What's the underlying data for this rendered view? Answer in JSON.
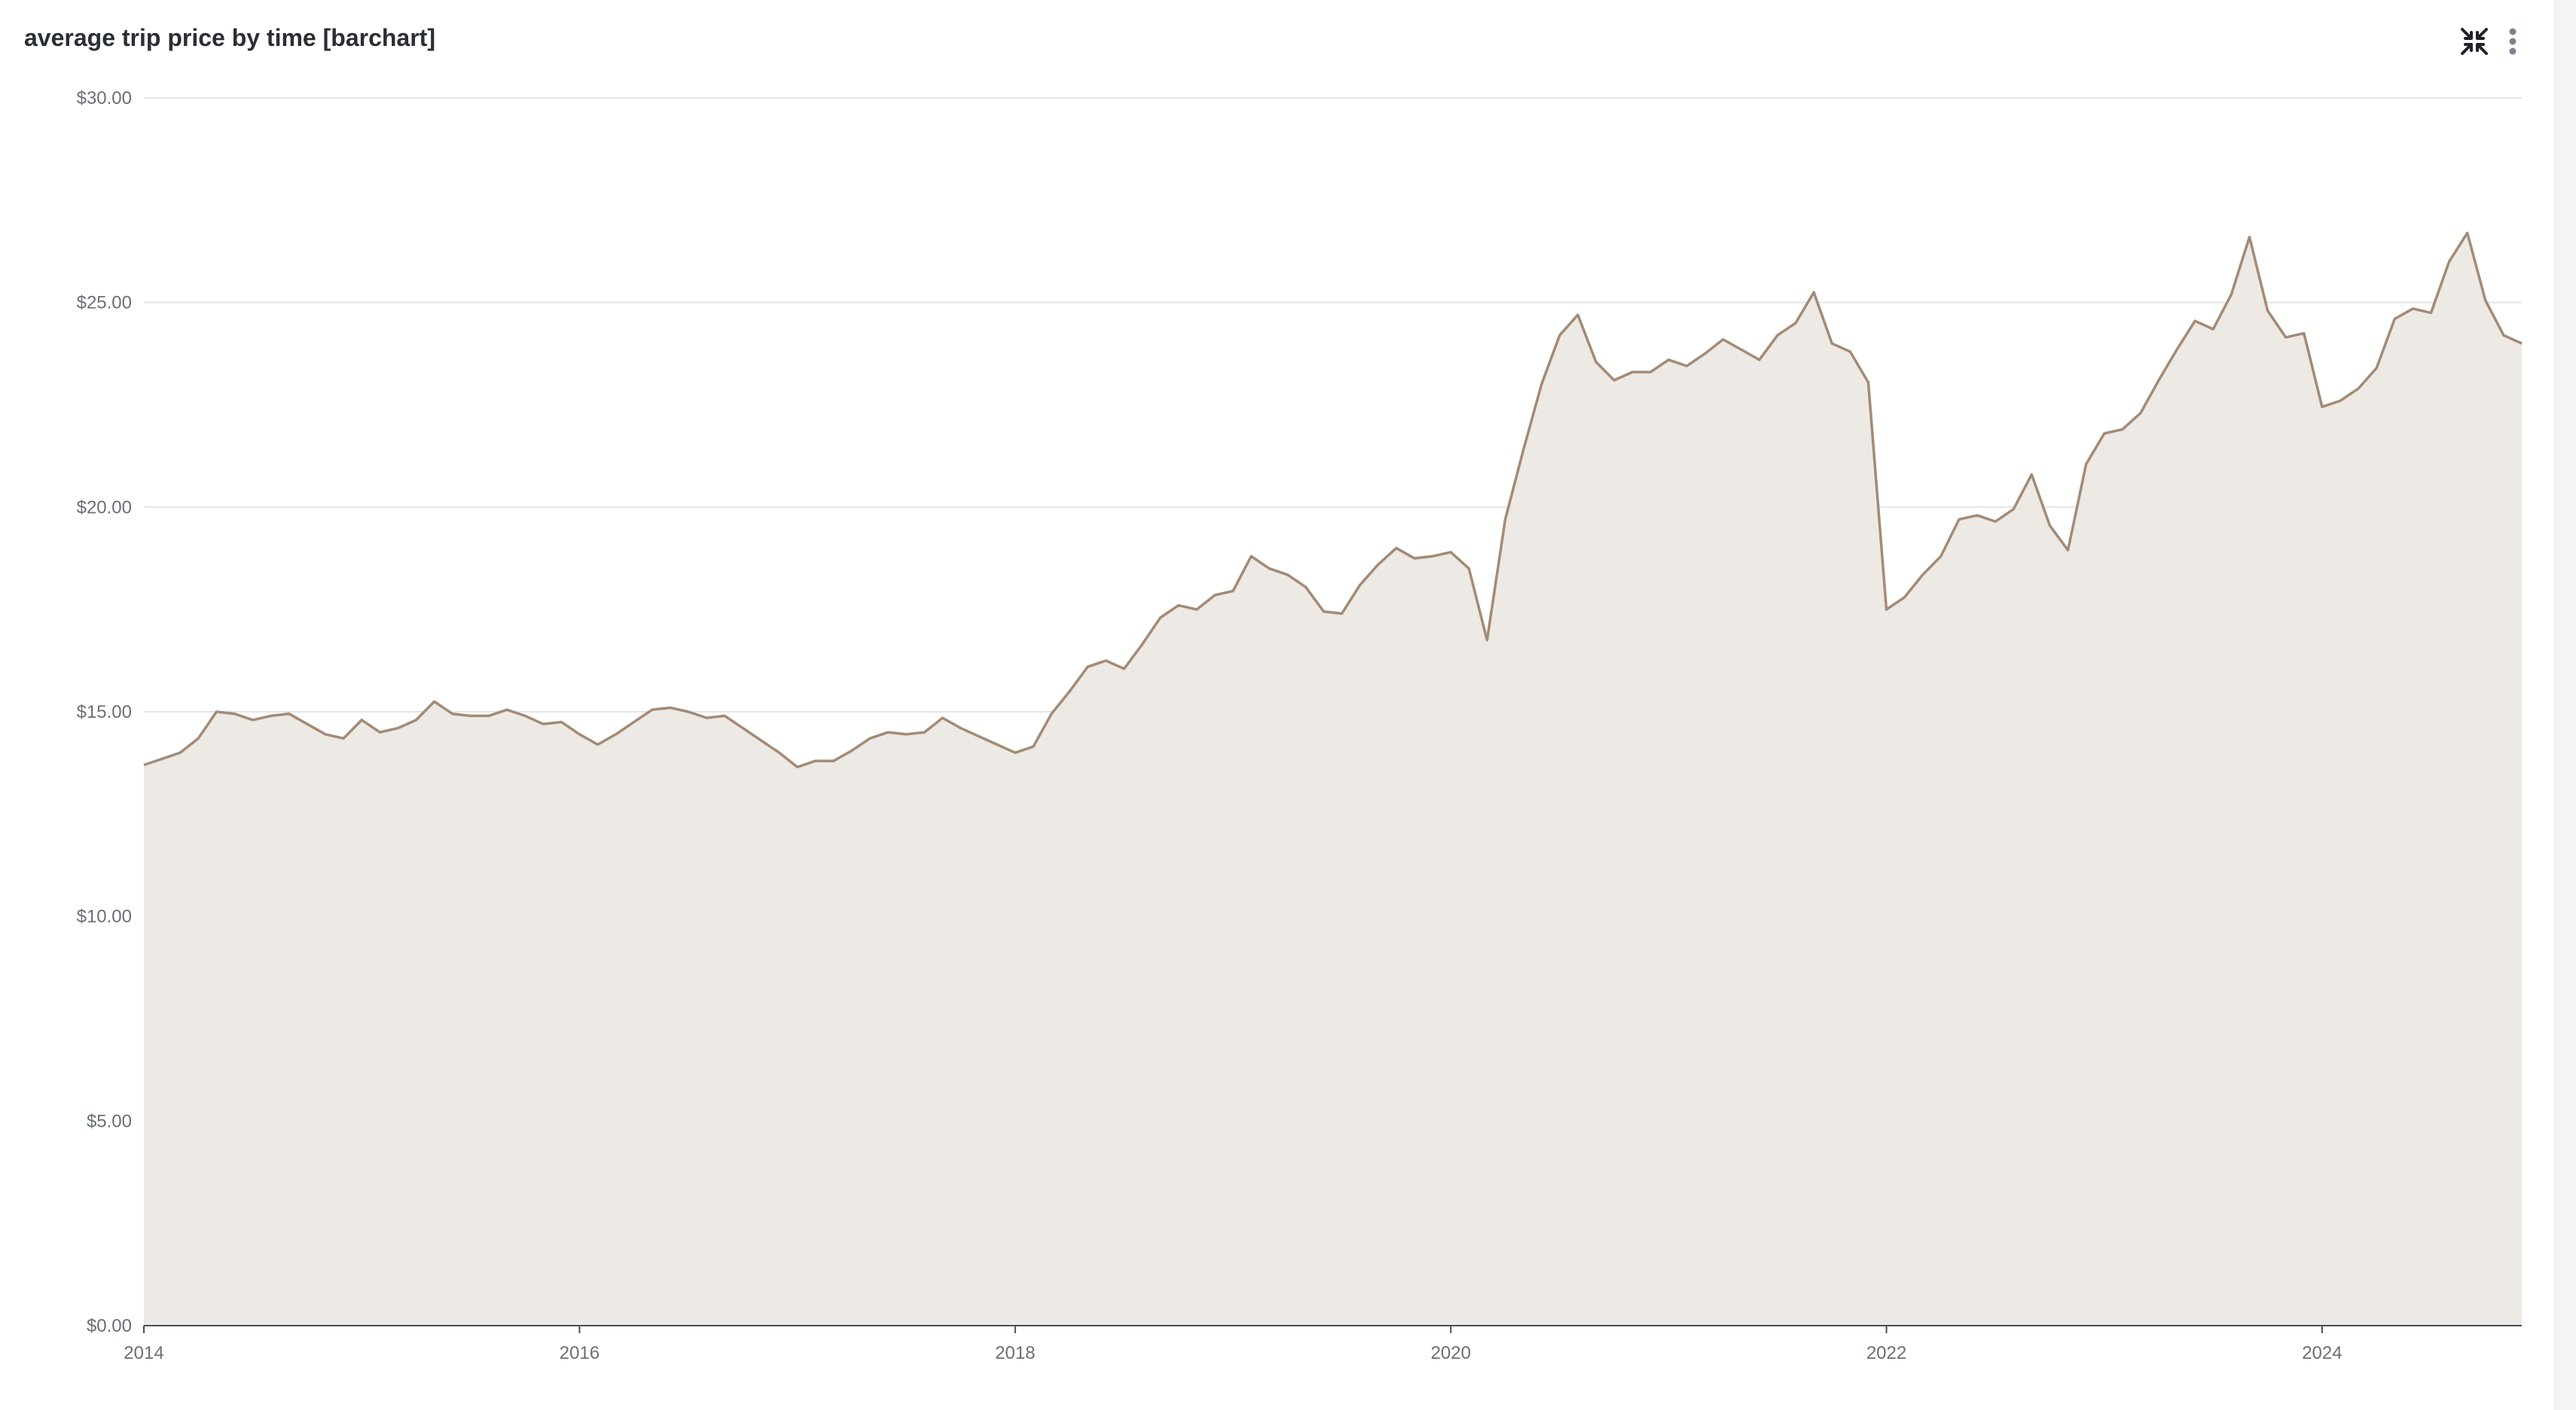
{
  "chart_data": {
    "type": "area",
    "title": "average trip price by time [barchart]",
    "xlabel": "",
    "ylabel": "",
    "x_range": [
      "2014-01",
      "2024-12"
    ],
    "ylim": [
      0,
      30
    ],
    "y_ticks": [
      "$0.00",
      "$5.00",
      "$10.00",
      "$15.00",
      "$20.00",
      "$25.00",
      "$30.00"
    ],
    "x_ticks": [
      "2014",
      "2016",
      "2018",
      "2020",
      "2022",
      "2024"
    ],
    "grid": true,
    "legend": "none",
    "series": [
      {
        "color": "#a38b76",
        "fill": "#ede9e4",
        "points": [
          [
            "2014-01",
            13.7
          ],
          [
            "2014-02",
            13.85
          ],
          [
            "2014-03",
            14.0
          ],
          [
            "2014-04",
            14.35
          ],
          [
            "2014-05",
            15.0
          ],
          [
            "2014-06",
            14.95
          ],
          [
            "2014-07",
            14.8
          ],
          [
            "2014-08",
            14.9
          ],
          [
            "2014-09",
            14.95
          ],
          [
            "2014-10",
            14.7
          ],
          [
            "2014-11",
            14.45
          ],
          [
            "2014-12",
            14.35
          ],
          [
            "2015-01",
            14.8
          ],
          [
            "2015-02",
            14.5
          ],
          [
            "2015-03",
            14.6
          ],
          [
            "2015-04",
            14.8
          ],
          [
            "2015-05",
            15.25
          ],
          [
            "2015-06",
            14.95
          ],
          [
            "2015-07",
            14.9
          ],
          [
            "2015-08",
            14.9
          ],
          [
            "2015-09",
            15.05
          ],
          [
            "2015-10",
            14.9
          ],
          [
            "2015-11",
            14.7
          ],
          [
            "2015-12",
            14.75
          ],
          [
            "2016-01",
            14.45
          ],
          [
            "2016-02",
            14.2
          ],
          [
            "2016-03",
            14.45
          ],
          [
            "2016-04",
            14.75
          ],
          [
            "2016-05",
            15.05
          ],
          [
            "2016-06",
            15.1
          ],
          [
            "2016-07",
            15.0
          ],
          [
            "2016-08",
            14.85
          ],
          [
            "2016-09",
            14.9
          ],
          [
            "2016-10",
            14.6
          ],
          [
            "2016-11",
            14.3
          ],
          [
            "2016-12",
            14.0
          ],
          [
            "2017-01",
            13.65
          ],
          [
            "2017-02",
            13.8
          ],
          [
            "2017-03",
            13.8
          ],
          [
            "2017-04",
            14.05
          ],
          [
            "2017-05",
            14.35
          ],
          [
            "2017-06",
            14.5
          ],
          [
            "2017-07",
            14.45
          ],
          [
            "2017-08",
            14.5
          ],
          [
            "2017-09",
            14.85
          ],
          [
            "2017-10",
            14.6
          ],
          [
            "2017-11",
            14.4
          ],
          [
            "2017-12",
            14.2
          ],
          [
            "2018-01",
            14.0
          ],
          [
            "2018-02",
            14.15
          ],
          [
            "2018-03",
            14.95
          ],
          [
            "2018-04",
            15.5
          ],
          [
            "2018-05",
            16.1
          ],
          [
            "2018-06",
            16.25
          ],
          [
            "2018-07",
            16.05
          ],
          [
            "2018-08",
            16.65
          ],
          [
            "2018-09",
            17.3
          ],
          [
            "2018-10",
            17.6
          ],
          [
            "2018-11",
            17.5
          ],
          [
            "2018-12",
            17.85
          ],
          [
            "2019-01",
            17.95
          ],
          [
            "2019-02",
            18.8
          ],
          [
            "2019-03",
            18.5
          ],
          [
            "2019-04",
            18.35
          ],
          [
            "2019-05",
            18.05
          ],
          [
            "2019-06",
            17.45
          ],
          [
            "2019-07",
            17.4
          ],
          [
            "2019-08",
            18.1
          ],
          [
            "2019-09",
            18.6
          ],
          [
            "2019-10",
            19.0
          ],
          [
            "2019-11",
            18.75
          ],
          [
            "2019-12",
            18.8
          ],
          [
            "2020-01",
            18.9
          ],
          [
            "2020-02",
            18.5
          ],
          [
            "2020-03",
            16.75
          ],
          [
            "2020-04",
            19.7
          ],
          [
            "2020-05",
            21.4
          ],
          [
            "2020-06",
            23.0
          ],
          [
            "2020-07",
            24.2
          ],
          [
            "2020-08",
            24.7
          ],
          [
            "2020-09",
            23.55
          ],
          [
            "2020-10",
            23.1
          ],
          [
            "2020-11",
            23.3
          ],
          [
            "2020-12",
            23.3
          ],
          [
            "2021-01",
            23.6
          ],
          [
            "2021-02",
            23.45
          ],
          [
            "2021-03",
            23.75
          ],
          [
            "2021-04",
            24.1
          ],
          [
            "2021-05",
            23.85
          ],
          [
            "2021-06",
            23.6
          ],
          [
            "2021-07",
            24.2
          ],
          [
            "2021-08",
            24.5
          ],
          [
            "2021-09",
            25.25
          ],
          [
            "2021-10",
            24.0
          ],
          [
            "2021-11",
            23.8
          ],
          [
            "2021-12",
            23.05
          ],
          [
            "2022-01",
            17.5
          ],
          [
            "2022-02",
            17.8
          ],
          [
            "2022-03",
            18.35
          ],
          [
            "2022-04",
            18.8
          ],
          [
            "2022-05",
            19.7
          ],
          [
            "2022-06",
            19.8
          ],
          [
            "2022-07",
            19.65
          ],
          [
            "2022-08",
            19.95
          ],
          [
            "2022-09",
            20.8
          ],
          [
            "2022-10",
            19.55
          ],
          [
            "2022-11",
            18.95
          ],
          [
            "2022-12",
            21.05
          ],
          [
            "2023-01",
            21.8
          ],
          [
            "2023-02",
            21.9
          ],
          [
            "2023-03",
            22.3
          ],
          [
            "2023-04",
            23.1
          ],
          [
            "2023-05",
            23.85
          ],
          [
            "2023-06",
            24.55
          ],
          [
            "2023-07",
            24.35
          ],
          [
            "2023-08",
            25.2
          ],
          [
            "2023-09",
            26.6
          ],
          [
            "2023-10",
            24.8
          ],
          [
            "2023-11",
            24.15
          ],
          [
            "2023-12",
            24.25
          ],
          [
            "2024-01",
            22.45
          ],
          [
            "2024-02",
            22.6
          ],
          [
            "2024-03",
            22.9
          ],
          [
            "2024-04",
            23.4
          ],
          [
            "2024-05",
            24.6
          ],
          [
            "2024-06",
            24.85
          ],
          [
            "2024-07",
            24.75
          ],
          [
            "2024-08",
            26.0
          ],
          [
            "2024-09",
            26.7
          ],
          [
            "2024-10",
            25.05
          ],
          [
            "2024-11",
            24.2
          ],
          [
            "2024-12",
            24.0
          ]
        ]
      }
    ]
  },
  "toolbar": {
    "collapse_icon": "collapse-arrows-icon",
    "more_icon": "vertical-dots-icon"
  }
}
